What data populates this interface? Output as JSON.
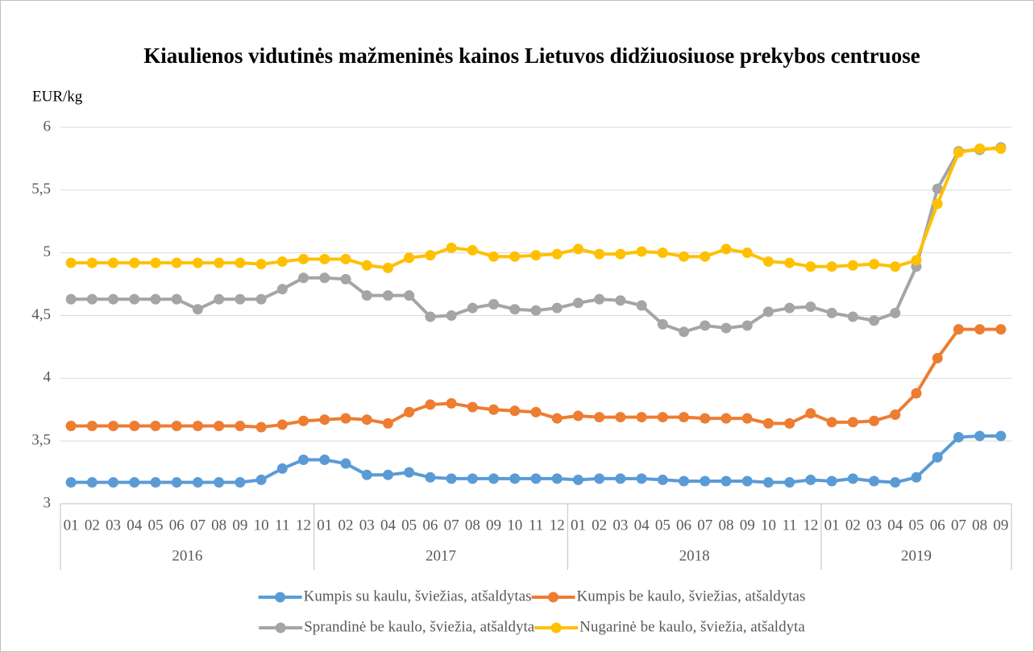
{
  "chart_data": {
    "type": "line",
    "title": "Kiaulienos vidutinės mažmeninės kainos Lietuvos didžiuosiuose prekybos centruose",
    "y_label": "EUR/kg",
    "categories": [
      "01",
      "02",
      "03",
      "04",
      "05",
      "06",
      "07",
      "08",
      "09",
      "10",
      "11",
      "12",
      "01",
      "02",
      "03",
      "04",
      "05",
      "06",
      "07",
      "08",
      "09",
      "10",
      "11",
      "12",
      "01",
      "02",
      "03",
      "04",
      "05",
      "06",
      "07",
      "08",
      "09",
      "10",
      "11",
      "12",
      "01",
      "02",
      "03",
      "04",
      "05",
      "06",
      "07",
      "08",
      "09"
    ],
    "category_groups": [
      "2016",
      "2017",
      "2018",
      "2019"
    ],
    "ylim": [
      3,
      6
    ],
    "yticks": [
      3,
      {
        "value": 3.5,
        "label": "3,5"
      },
      4,
      {
        "value": 4.5,
        "label": "4,5"
      },
      5,
      {
        "value": 5.5,
        "label": "5,5"
      },
      6
    ],
    "grid": true,
    "legend": "bottom",
    "series": [
      {
        "name": "Kumpis su kaulu, šviežias, atšaldytas",
        "color": "#5b9bd5",
        "values": [
          3.17,
          3.17,
          3.17,
          3.17,
          3.17,
          3.17,
          3.17,
          3.17,
          3.17,
          3.19,
          3.28,
          3.35,
          3.35,
          3.32,
          3.23,
          3.23,
          3.25,
          3.21,
          3.2,
          3.2,
          3.2,
          3.2,
          3.2,
          3.2,
          3.19,
          3.2,
          3.2,
          3.2,
          3.19,
          3.18,
          3.18,
          3.18,
          3.18,
          3.17,
          3.17,
          3.19,
          3.18,
          3.2,
          3.18,
          3.17,
          3.21,
          3.37,
          3.53,
          3.54,
          3.54
        ]
      },
      {
        "name": "Kumpis be kaulo, šviežias, atšaldytas",
        "color": "#ed7d31",
        "values": [
          3.62,
          3.62,
          3.62,
          3.62,
          3.62,
          3.62,
          3.62,
          3.62,
          3.62,
          3.61,
          3.63,
          3.66,
          3.67,
          3.68,
          3.67,
          3.64,
          3.73,
          3.79,
          3.8,
          3.77,
          3.75,
          3.74,
          3.73,
          3.68,
          3.7,
          3.69,
          3.69,
          3.69,
          3.69,
          3.69,
          3.68,
          3.68,
          3.68,
          3.64,
          3.64,
          3.72,
          3.65,
          3.65,
          3.66,
          3.71,
          3.88,
          4.16,
          4.39,
          4.39,
          4.39
        ]
      },
      {
        "name": "Sprandinė be kaulo, šviežia, atšaldyta",
        "color": "#a5a5a5",
        "values": [
          4.63,
          4.63,
          4.63,
          4.63,
          4.63,
          4.63,
          4.55,
          4.63,
          4.63,
          4.63,
          4.71,
          4.8,
          4.8,
          4.79,
          4.66,
          4.66,
          4.66,
          4.49,
          4.5,
          4.56,
          4.59,
          4.55,
          4.54,
          4.56,
          4.6,
          4.63,
          4.62,
          4.58,
          4.43,
          4.37,
          4.42,
          4.4,
          4.42,
          4.53,
          4.56,
          4.57,
          4.52,
          4.49,
          4.46,
          4.52,
          4.89,
          5.51,
          5.81,
          5.82,
          5.84
        ]
      },
      {
        "name": "Nugarinė be kaulo, šviežia, atšaldyta",
        "color": "#ffc000",
        "values": [
          4.92,
          4.92,
          4.92,
          4.92,
          4.92,
          4.92,
          4.92,
          4.92,
          4.92,
          4.91,
          4.93,
          4.95,
          4.95,
          4.95,
          4.9,
          4.88,
          4.96,
          4.98,
          5.04,
          5.02,
          4.97,
          4.97,
          4.98,
          4.99,
          5.03,
          4.99,
          4.99,
          5.01,
          5,
          4.97,
          4.97,
          5.03,
          5,
          4.93,
          4.92,
          4.89,
          4.89,
          4.9,
          4.91,
          4.89,
          4.94,
          5.39,
          5.8,
          5.83,
          5.83
        ]
      }
    ]
  }
}
